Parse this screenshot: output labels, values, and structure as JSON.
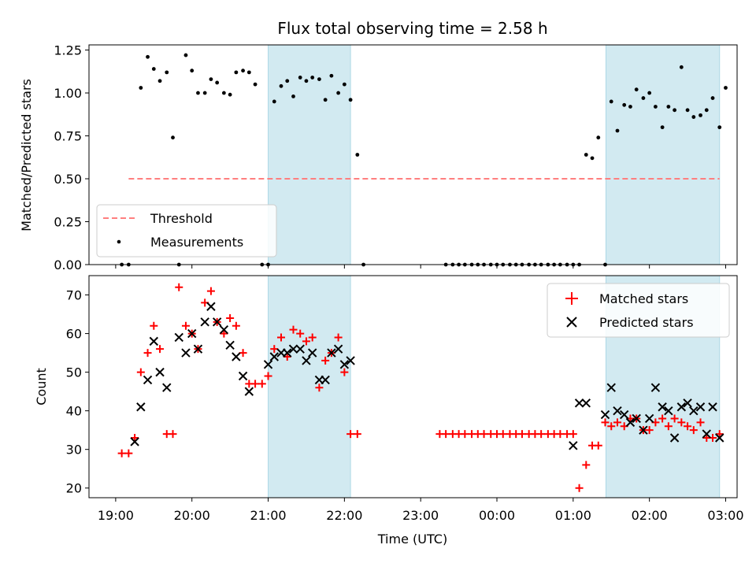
{
  "chart_data": {
    "type": "scatter",
    "title": "Flux total observing time = 2.58 h",
    "xlabel": "Time (UTC)",
    "x_ticks": [
      "19:00",
      "20:00",
      "21:00",
      "22:00",
      "23:00",
      "00:00",
      "01:00",
      "02:00",
      "03:00"
    ],
    "x_range_hours": [
      18.65,
      27.15
    ],
    "shaded_intervals_hours": [
      [
        21.0,
        22.08
      ],
      [
        25.43,
        26.92
      ]
    ],
    "shade_color": "#add8e6",
    "top_panel": {
      "ylabel": "Matched/Predicted stars",
      "ylim": [
        0,
        1.28
      ],
      "y_ticks": [
        "0.00",
        "0.25",
        "0.50",
        "0.75",
        "1.00",
        "1.25"
      ],
      "threshold": {
        "name": "Threshold",
        "value": 0.5,
        "x_range_hours": [
          19.17,
          26.92
        ],
        "color": "#ff7f7f"
      },
      "measurements": {
        "name": "Measurements",
        "color": "#000000",
        "points": [
          [
            19.08,
            0.0
          ],
          [
            19.17,
            0.0
          ],
          [
            19.33,
            1.03
          ],
          [
            19.42,
            1.21
          ],
          [
            19.5,
            1.14
          ],
          [
            19.58,
            1.07
          ],
          [
            19.67,
            1.12
          ],
          [
            19.75,
            0.74
          ],
          [
            19.83,
            0.0
          ],
          [
            19.92,
            1.22
          ],
          [
            20.0,
            1.13
          ],
          [
            20.08,
            1.0
          ],
          [
            20.17,
            1.0
          ],
          [
            20.25,
            1.08
          ],
          [
            20.33,
            1.06
          ],
          [
            20.42,
            1.0
          ],
          [
            20.5,
            0.99
          ],
          [
            20.58,
            1.12
          ],
          [
            20.67,
            1.13
          ],
          [
            20.75,
            1.12
          ],
          [
            20.83,
            1.05
          ],
          [
            20.92,
            0.0
          ],
          [
            21.0,
            0.0
          ],
          [
            21.08,
            0.95
          ],
          [
            21.17,
            1.04
          ],
          [
            21.25,
            1.07
          ],
          [
            21.33,
            0.98
          ],
          [
            21.42,
            1.09
          ],
          [
            21.5,
            1.07
          ],
          [
            21.58,
            1.09
          ],
          [
            21.67,
            1.08
          ],
          [
            21.75,
            0.96
          ],
          [
            21.83,
            1.1
          ],
          [
            21.92,
            1.0
          ],
          [
            22.0,
            1.05
          ],
          [
            22.08,
            0.96
          ],
          [
            22.17,
            0.64
          ],
          [
            22.25,
            0.0
          ],
          [
            23.33,
            0.0
          ],
          [
            23.42,
            0.0
          ],
          [
            23.5,
            0.0
          ],
          [
            23.58,
            0.0
          ],
          [
            23.67,
            0.0
          ],
          [
            23.75,
            0.0
          ],
          [
            23.83,
            0.0
          ],
          [
            23.92,
            0.0
          ],
          [
            24.0,
            0.0
          ],
          [
            24.08,
            0.0
          ],
          [
            24.17,
            0.0
          ],
          [
            24.25,
            0.0
          ],
          [
            24.33,
            0.0
          ],
          [
            24.42,
            0.0
          ],
          [
            24.5,
            0.0
          ],
          [
            24.58,
            0.0
          ],
          [
            24.67,
            0.0
          ],
          [
            24.75,
            0.0
          ],
          [
            24.83,
            0.0
          ],
          [
            24.92,
            0.0
          ],
          [
            25.0,
            0.0
          ],
          [
            25.08,
            0.0
          ],
          [
            25.17,
            0.64
          ],
          [
            25.25,
            0.62
          ],
          [
            25.33,
            0.74
          ],
          [
            25.42,
            0.0
          ],
          [
            25.5,
            0.95
          ],
          [
            25.58,
            0.78
          ],
          [
            25.67,
            0.93
          ],
          [
            25.75,
            0.92
          ],
          [
            25.83,
            1.02
          ],
          [
            25.92,
            0.97
          ],
          [
            26.0,
            1.0
          ],
          [
            26.08,
            0.92
          ],
          [
            26.17,
            0.8
          ],
          [
            26.25,
            0.92
          ],
          [
            26.33,
            0.9
          ],
          [
            26.42,
            1.15
          ],
          [
            26.5,
            0.9
          ],
          [
            26.58,
            0.86
          ],
          [
            26.67,
            0.87
          ],
          [
            26.75,
            0.9
          ],
          [
            26.83,
            0.97
          ],
          [
            26.92,
            0.8
          ],
          [
            27.0,
            1.03
          ]
        ]
      },
      "legend": {
        "position": "lower-left",
        "entries": [
          "Threshold",
          "Measurements"
        ]
      }
    },
    "bottom_panel": {
      "ylabel": "Count",
      "ylim": [
        17.5,
        75
      ],
      "y_ticks": [
        "20",
        "30",
        "40",
        "50",
        "60",
        "70"
      ],
      "legend": {
        "position": "upper-right",
        "entries": [
          "Matched stars",
          "Predicted stars"
        ]
      },
      "series": [
        {
          "name": "Matched stars",
          "marker": "+",
          "color": "#ff0000",
          "points": [
            [
              19.08,
              29
            ],
            [
              19.17,
              29
            ],
            [
              19.25,
              33
            ],
            [
              19.33,
              50
            ],
            [
              19.42,
              55
            ],
            [
              19.5,
              62
            ],
            [
              19.58,
              56
            ],
            [
              19.67,
              34
            ],
            [
              19.75,
              34
            ],
            [
              19.83,
              72
            ],
            [
              19.92,
              62
            ],
            [
              20.0,
              60
            ],
            [
              20.08,
              56
            ],
            [
              20.17,
              68
            ],
            [
              20.25,
              71
            ],
            [
              20.33,
              63
            ],
            [
              20.42,
              60
            ],
            [
              20.5,
              64
            ],
            [
              20.58,
              62
            ],
            [
              20.67,
              55
            ],
            [
              20.75,
              47
            ],
            [
              20.83,
              47
            ],
            [
              20.92,
              47
            ],
            [
              21.0,
              49
            ],
            [
              21.08,
              56
            ],
            [
              21.17,
              59
            ],
            [
              21.25,
              54
            ],
            [
              21.33,
              61
            ],
            [
              21.42,
              60
            ],
            [
              21.5,
              58
            ],
            [
              21.58,
              59
            ],
            [
              21.67,
              46
            ],
            [
              21.75,
              53
            ],
            [
              21.83,
              55
            ],
            [
              21.92,
              59
            ],
            [
              22.0,
              50
            ],
            [
              22.08,
              34
            ],
            [
              22.17,
              34
            ],
            [
              23.25,
              34
            ],
            [
              23.33,
              34
            ],
            [
              23.42,
              34
            ],
            [
              23.5,
              34
            ],
            [
              23.58,
              34
            ],
            [
              23.67,
              34
            ],
            [
              23.75,
              34
            ],
            [
              23.83,
              34
            ],
            [
              23.92,
              34
            ],
            [
              24.0,
              34
            ],
            [
              24.08,
              34
            ],
            [
              24.17,
              34
            ],
            [
              24.25,
              34
            ],
            [
              24.33,
              34
            ],
            [
              24.42,
              34
            ],
            [
              24.5,
              34
            ],
            [
              24.58,
              34
            ],
            [
              24.67,
              34
            ],
            [
              24.75,
              34
            ],
            [
              24.83,
              34
            ],
            [
              24.92,
              34
            ],
            [
              25.0,
              34
            ],
            [
              25.08,
              20
            ],
            [
              25.17,
              26
            ],
            [
              25.25,
              31
            ],
            [
              25.33,
              31
            ],
            [
              25.42,
              37
            ],
            [
              25.5,
              36
            ],
            [
              25.58,
              37
            ],
            [
              25.67,
              36
            ],
            [
              25.75,
              38
            ],
            [
              25.83,
              38
            ],
            [
              25.92,
              35
            ],
            [
              26.0,
              35
            ],
            [
              26.08,
              37
            ],
            [
              26.17,
              38
            ],
            [
              26.25,
              36
            ],
            [
              26.33,
              38
            ],
            [
              26.42,
              37
            ],
            [
              26.5,
              36
            ],
            [
              26.58,
              35
            ],
            [
              26.67,
              37
            ],
            [
              26.75,
              33
            ],
            [
              26.83,
              33
            ],
            [
              26.92,
              34
            ]
          ]
        },
        {
          "name": "Predicted stars",
          "marker": "x",
          "color": "#000000",
          "points": [
            [
              19.25,
              32
            ],
            [
              19.33,
              41
            ],
            [
              19.42,
              48
            ],
            [
              19.5,
              58
            ],
            [
              19.58,
              50
            ],
            [
              19.67,
              46
            ],
            [
              19.83,
              59
            ],
            [
              19.92,
              55
            ],
            [
              20.0,
              60
            ],
            [
              20.08,
              56
            ],
            [
              20.17,
              63
            ],
            [
              20.25,
              67
            ],
            [
              20.33,
              63
            ],
            [
              20.42,
              61
            ],
            [
              20.5,
              57
            ],
            [
              20.58,
              54
            ],
            [
              20.67,
              49
            ],
            [
              20.75,
              45
            ],
            [
              21.0,
              52
            ],
            [
              21.08,
              54
            ],
            [
              21.17,
              55
            ],
            [
              21.25,
              55
            ],
            [
              21.33,
              56
            ],
            [
              21.42,
              56
            ],
            [
              21.5,
              53
            ],
            [
              21.58,
              55
            ],
            [
              21.67,
              48
            ],
            [
              21.75,
              48
            ],
            [
              21.83,
              55
            ],
            [
              21.92,
              56
            ],
            [
              22.0,
              52
            ],
            [
              22.08,
              53
            ],
            [
              25.0,
              31
            ],
            [
              25.08,
              42
            ],
            [
              25.17,
              42
            ],
            [
              25.42,
              39
            ],
            [
              25.5,
              46
            ],
            [
              25.58,
              40
            ],
            [
              25.67,
              39
            ],
            [
              25.75,
              37
            ],
            [
              25.83,
              38
            ],
            [
              25.92,
              35
            ],
            [
              26.0,
              38
            ],
            [
              26.08,
              46
            ],
            [
              26.17,
              41
            ],
            [
              26.25,
              40
            ],
            [
              26.33,
              33
            ],
            [
              26.42,
              41
            ],
            [
              26.5,
              42
            ],
            [
              26.58,
              40
            ],
            [
              26.67,
              41
            ],
            [
              26.75,
              34
            ],
            [
              26.83,
              41
            ],
            [
              26.92,
              33
            ]
          ]
        }
      ]
    }
  }
}
